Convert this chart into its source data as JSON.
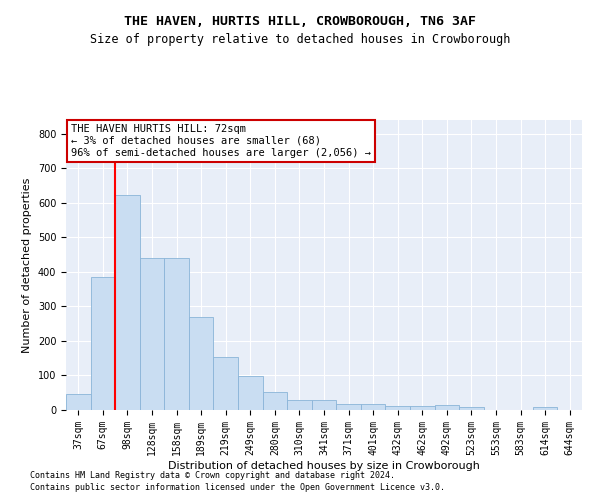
{
  "title": "THE HAVEN, HURTIS HILL, CROWBOROUGH, TN6 3AF",
  "subtitle": "Size of property relative to detached houses in Crowborough",
  "xlabel": "Distribution of detached houses by size in Crowborough",
  "ylabel": "Number of detached properties",
  "categories": [
    "37sqm",
    "67sqm",
    "98sqm",
    "128sqm",
    "158sqm",
    "189sqm",
    "219sqm",
    "249sqm",
    "280sqm",
    "310sqm",
    "341sqm",
    "371sqm",
    "401sqm",
    "432sqm",
    "462sqm",
    "492sqm",
    "523sqm",
    "553sqm",
    "583sqm",
    "614sqm",
    "644sqm"
  ],
  "values": [
    47,
    385,
    623,
    441,
    441,
    268,
    153,
    98,
    52,
    29,
    28,
    17,
    17,
    12,
    13,
    14,
    8,
    0,
    0,
    8,
    0
  ],
  "bar_color": "#c9ddf2",
  "bar_edge_color": "#8ab4d8",
  "red_line_x": 1.5,
  "annotation_title": "THE HAVEN HURTIS HILL: 72sqm",
  "annotation_line1": "← 3% of detached houses are smaller (68)",
  "annotation_line2": "96% of semi-detached houses are larger (2,056) →",
  "annotation_box_color": "#ffffff",
  "annotation_box_edge_color": "#cc0000",
  "footer1": "Contains HM Land Registry data © Crown copyright and database right 2024.",
  "footer2": "Contains public sector information licensed under the Open Government Licence v3.0.",
  "ylim": [
    0,
    840
  ],
  "yticks": [
    0,
    100,
    200,
    300,
    400,
    500,
    600,
    700,
    800
  ],
  "bg_color": "#e8eef8",
  "title_fontsize": 9.5,
  "subtitle_fontsize": 8.5,
  "axis_fontsize": 8,
  "tick_fontsize": 7,
  "footer_fontsize": 6
}
